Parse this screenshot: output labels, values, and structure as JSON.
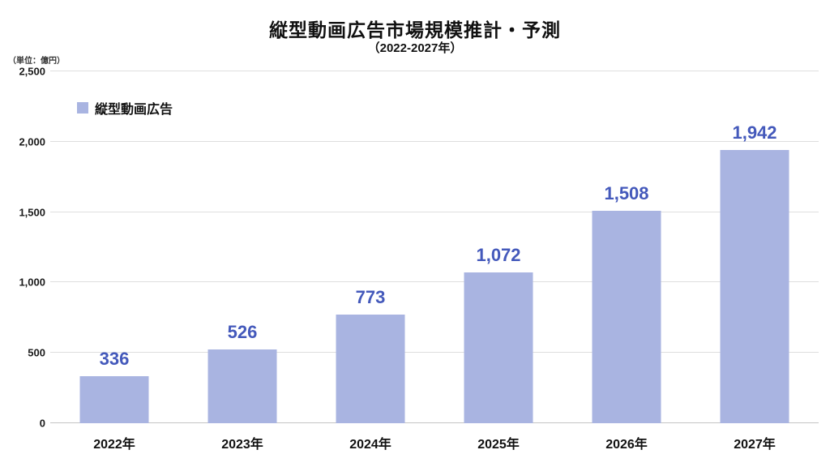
{
  "chart_data": {
    "type": "bar",
    "title": "縦型動画広告市場規模推計・予測",
    "subtitle": "（2022-2027年）",
    "unit_label": "（単位：億円）",
    "legend": {
      "label": "縦型動画広告",
      "swatch_color": "#a9b4e1",
      "position": "top-left-inside"
    },
    "categories": [
      "2022年",
      "2023年",
      "2024年",
      "2025年",
      "2026年",
      "2027年"
    ],
    "series": [
      {
        "name": "縦型動画広告",
        "values": [
          336,
          526,
          773,
          1072,
          1508,
          1942
        ],
        "value_labels": [
          "336",
          "526",
          "773",
          "1,072",
          "1,508",
          "1,942"
        ]
      }
    ],
    "xlabel": "",
    "ylabel": "",
    "ylim": [
      0,
      2500
    ],
    "ytick_values": [
      0,
      500,
      1000,
      1500,
      2000,
      2500
    ],
    "ytick_labels": [
      "0",
      "500",
      "1,000",
      "1,500",
      "2,000",
      "2,500"
    ],
    "grid": "horizontal",
    "colors": {
      "bar": "#a9b4e1",
      "value_label": "#4459bb",
      "gridline": "#dedede",
      "baseline": "#c4c4c4",
      "text": "#111111"
    }
  }
}
